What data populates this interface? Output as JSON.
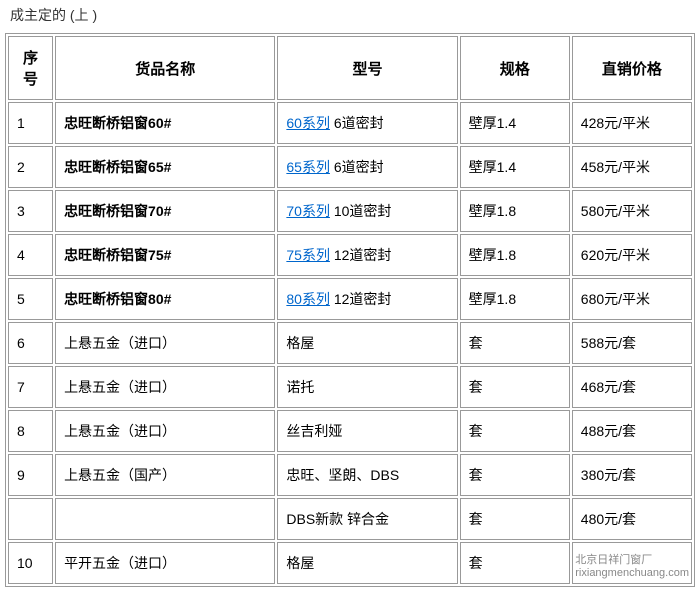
{
  "header_text": "成主定的 (上 )",
  "watermark_line1": "北京日祥门窗厂",
  "watermark_line2": "rixiangmenchuang.com",
  "columns": {
    "seq": "序号",
    "name": "货品名称",
    "model": "型号",
    "spec": "规格",
    "price": "直销价格"
  },
  "rows": [
    {
      "seq": "1",
      "name": "忠旺断桥铝窗60#",
      "name_bold": true,
      "series_link": "60系列",
      "model_rest": " 6道密封",
      "spec": "壁厚1.4",
      "price": "428元/平米"
    },
    {
      "seq": "2",
      "name": "忠旺断桥铝窗65#",
      "name_bold": true,
      "series_link": "65系列",
      "model_rest": " 6道密封",
      "spec": "壁厚1.4",
      "price": "458元/平米"
    },
    {
      "seq": "3",
      "name": "忠旺断桥铝窗70#",
      "name_bold": true,
      "series_link": "70系列",
      "model_rest": " 10道密封",
      "spec": "壁厚1.8",
      "price": "580元/平米"
    },
    {
      "seq": "4",
      "name": "忠旺断桥铝窗75#",
      "name_bold": true,
      "series_link": "75系列",
      "model_rest": " 12道密封",
      "spec": "壁厚1.8",
      "price": "620元/平米"
    },
    {
      "seq": "5",
      "name": "忠旺断桥铝窗80#",
      "name_bold": true,
      "series_link": "80系列",
      "model_rest": " 12道密封",
      "spec": "壁厚1.8",
      "price": "680元/平米"
    },
    {
      "seq": "6",
      "name": "上悬五金（进口）",
      "name_bold": false,
      "series_link": "",
      "model_rest": "格屋",
      "spec": "套",
      "price": "588元/套"
    },
    {
      "seq": "7",
      "name": "上悬五金（进口）",
      "name_bold": false,
      "series_link": "",
      "model_rest": "诺托",
      "spec": "套",
      "price": "468元/套"
    },
    {
      "seq": "8",
      "name": "上悬五金（进口）",
      "name_bold": false,
      "series_link": "",
      "model_rest": "丝吉利娅",
      "spec": "套",
      "price": "488元/套"
    },
    {
      "seq": "9",
      "name": "上悬五金（国产）",
      "name_bold": false,
      "series_link": "",
      "model_rest": "忠旺、坚朗、DBS",
      "spec": "套",
      "price": "380元/套"
    },
    {
      "seq": "",
      "name": "",
      "name_bold": false,
      "series_link": "",
      "model_rest": "DBS新款 锌合金",
      "spec": "套",
      "price": "480元/套"
    },
    {
      "seq": "10",
      "name": "平开五金（进口）",
      "name_bold": false,
      "series_link": "",
      "model_rest": "格屋",
      "spec": "套",
      "price": ""
    }
  ]
}
